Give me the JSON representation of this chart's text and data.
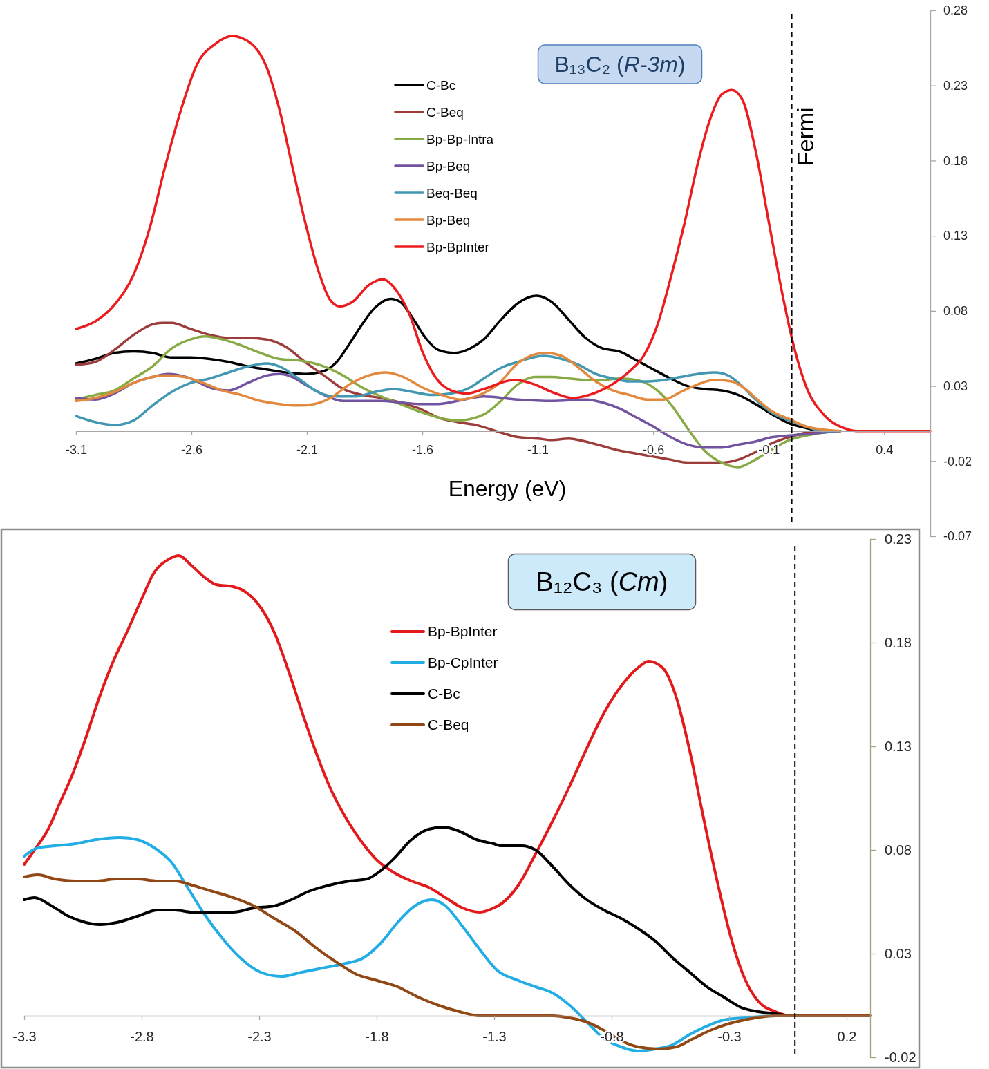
{
  "chart_data": [
    {
      "type": "line",
      "title": "B₁₃C₂ (R-3m)",
      "xlabel": "Energy (eV)",
      "legend": "top",
      "xlim": [
        -3.1,
        0.6
      ],
      "ylim": [
        -0.07,
        0.28
      ],
      "xticks": [
        -3.1,
        -2.6,
        -2.1,
        -1.6,
        -1.1,
        -0.6,
        -0.1,
        0.4
      ],
      "yticks": [
        -0.07,
        -0.02,
        0.03,
        0.08,
        0.13,
        0.18,
        0.23,
        0.28
      ],
      "ref_lines": [
        {
          "axis": "x",
          "value": 0,
          "label": "Fermi",
          "color": "#000000",
          "line_style": "dashed"
        }
      ],
      "series": [
        {
          "name": "C-Bc",
          "color": "#000000",
          "x": [
            -3.1,
            -3.017,
            -2.934,
            -2.851,
            -2.769,
            -2.686,
            -2.604,
            -2.521,
            -2.439,
            -2.356,
            -2.274,
            -2.191,
            -2.108,
            -2.026,
            -1.971,
            -1.916,
            -1.861,
            -1.806,
            -1.737,
            -1.696,
            -1.641,
            -1.586,
            -1.531,
            -1.462,
            -1.393,
            -1.334,
            -1.26,
            -1.187,
            -1.106,
            -1.04,
            -0.966,
            -0.893,
            -0.819,
            -0.746,
            -0.672,
            -0.599,
            -0.525,
            -0.452,
            -0.378,
            -0.304,
            -0.231,
            -0.157,
            -0.084,
            -0.01,
            0.063,
            0.137,
            0.21
          ],
          "values": [
            0.045,
            0.048,
            0.052,
            0.053,
            0.052,
            0.049,
            0.049,
            0.048,
            0.046,
            0.043,
            0.041,
            0.039,
            0.038,
            0.04,
            0.046,
            0.058,
            0.071,
            0.082,
            0.088,
            0.086,
            0.075,
            0.062,
            0.054,
            0.052,
            0.055,
            0.061,
            0.074,
            0.085,
            0.09,
            0.086,
            0.074,
            0.062,
            0.055,
            0.053,
            0.047,
            0.041,
            0.035,
            0.03,
            0.028,
            0.027,
            0.024,
            0.018,
            0.011,
            0.005,
            0.002,
            0,
            0
          ]
        },
        {
          "name": "C-Beq",
          "color": "#9c3d3b",
          "x": [
            -3.1,
            -3.017,
            -2.934,
            -2.851,
            -2.769,
            -2.727,
            -2.686,
            -2.604,
            -2.521,
            -2.439,
            -2.356,
            -2.274,
            -2.191,
            -2.108,
            -2.026,
            -1.943,
            -1.861,
            -1.778,
            -1.696,
            -1.613,
            -1.531,
            -1.448,
            -1.366,
            -1.26,
            -1.187,
            -1.099,
            -1.04,
            -0.966,
            -0.893,
            -0.819,
            -0.746,
            -0.672,
            -0.599,
            -0.525,
            -0.452,
            -0.378,
            -0.304,
            -0.231,
            -0.157,
            -0.084,
            -0.01,
            0.063,
            0.137,
            0.21
          ],
          "values": [
            0.044,
            0.046,
            0.054,
            0.064,
            0.071,
            0.072,
            0.072,
            0.068,
            0.064,
            0.062,
            0.062,
            0.061,
            0.056,
            0.046,
            0.037,
            0.028,
            0.024,
            0.022,
            0.019,
            0.015,
            0.009,
            0.006,
            0.004,
            -0.001,
            -0.004,
            -0.005,
            -0.006,
            -0.005,
            -0.007,
            -0.01,
            -0.013,
            -0.015,
            -0.017,
            -0.019,
            -0.021,
            -0.021,
            -0.021,
            -0.019,
            -0.014,
            -0.008,
            -0.004,
            -0.001,
            0,
            0
          ]
        },
        {
          "name": "Bp-Bp-Intra",
          "color": "#88aa45",
          "x": [
            -3.1,
            -3.017,
            -2.934,
            -2.851,
            -2.769,
            -2.686,
            -2.604,
            -2.542,
            -2.466,
            -2.384,
            -2.301,
            -2.219,
            -2.136,
            -2.067,
            -2.026,
            -1.943,
            -1.861,
            -1.778,
            -1.696,
            -1.613,
            -1.531,
            -1.448,
            -1.334,
            -1.26,
            -1.187,
            -1.113,
            -1.04,
            -0.966,
            -0.893,
            -0.819,
            -0.746,
            -0.672,
            -0.599,
            -0.525,
            -0.452,
            -0.378,
            -0.304,
            -0.231,
            -0.157,
            -0.084,
            -0.01,
            0.063,
            0.137,
            0.21
          ],
          "values": [
            0.021,
            0.024,
            0.027,
            0.035,
            0.043,
            0.055,
            0.061,
            0.063,
            0.061,
            0.057,
            0.052,
            0.048,
            0.047,
            0.045,
            0.043,
            0.037,
            0.029,
            0.023,
            0.018,
            0.013,
            0.009,
            0.007,
            0.011,
            0.02,
            0.031,
            0.036,
            0.036,
            0.035,
            0.034,
            0.034,
            0.035,
            0.034,
            0.029,
            0.018,
            0.002,
            -0.013,
            -0.021,
            -0.024,
            -0.019,
            -0.012,
            -0.006,
            -0.003,
            -0.001,
            0
          ]
        },
        {
          "name": "Bp-Beq",
          "color": "#7153a0",
          "x": [
            -3.1,
            -3.017,
            -2.934,
            -2.851,
            -2.769,
            -2.7,
            -2.604,
            -2.521,
            -2.439,
            -2.356,
            -2.274,
            -2.219,
            -2.163,
            -2.108,
            -2.026,
            -1.943,
            -1.861,
            -1.778,
            -1.696,
            -1.613,
            -1.531,
            -1.448,
            -1.334,
            -1.187,
            -1.04,
            -0.893,
            -0.819,
            -0.746,
            -0.672,
            -0.599,
            -0.525,
            -0.452,
            -0.378,
            -0.304,
            -0.231,
            -0.157,
            -0.084,
            -0.01,
            0.137,
            0.21
          ],
          "values": [
            0.022,
            0.021,
            0.025,
            0.032,
            0.036,
            0.038,
            0.035,
            0.029,
            0.027,
            0.032,
            0.037,
            0.038,
            0.036,
            0.031,
            0.024,
            0.02,
            0.02,
            0.02,
            0.019,
            0.018,
            0.018,
            0.02,
            0.023,
            0.021,
            0.02,
            0.021,
            0.019,
            0.015,
            0.009,
            0.003,
            -0.004,
            -0.009,
            -0.011,
            -0.011,
            -0.009,
            -0.007,
            -0.004,
            -0.003,
            -0.001,
            0
          ]
        },
        {
          "name": "Beq-Beq",
          "color": "#4198b0",
          "x": [
            -3.1,
            -3.017,
            -2.934,
            -2.851,
            -2.769,
            -2.686,
            -2.604,
            -2.521,
            -2.439,
            -2.356,
            -2.274,
            -2.219,
            -2.136,
            -2.053,
            -1.971,
            -1.888,
            -1.806,
            -1.723,
            -1.641,
            -1.558,
            -1.476,
            -1.393,
            -1.334,
            -1.26,
            -1.187,
            -1.077,
            -0.996,
            -0.922,
            -0.849,
            -0.775,
            -0.702,
            -0.628,
            -0.555,
            -0.481,
            -0.408,
            -0.334,
            -0.275,
            -0.216,
            -0.157,
            -0.084,
            -0.01,
            0.063,
            0.137,
            0.21
          ],
          "values": [
            0.01,
            0.006,
            0.004,
            0.007,
            0.017,
            0.026,
            0.032,
            0.035,
            0.039,
            0.043,
            0.045,
            0.043,
            0.035,
            0.026,
            0.023,
            0.023,
            0.026,
            0.028,
            0.026,
            0.024,
            0.025,
            0.029,
            0.035,
            0.042,
            0.046,
            0.05,
            0.048,
            0.044,
            0.038,
            0.035,
            0.033,
            0.033,
            0.034,
            0.036,
            0.038,
            0.039,
            0.037,
            0.03,
            0.021,
            0.012,
            0.007,
            0.003,
            0,
            0
          ]
        },
        {
          "name": "Bp-Beq",
          "color": "#e3893e",
          "x": [
            -3.1,
            -3.017,
            -2.934,
            -2.851,
            -2.769,
            -2.714,
            -2.631,
            -2.549,
            -2.466,
            -2.384,
            -2.301,
            -2.219,
            -2.136,
            -2.067,
            -1.998,
            -1.916,
            -1.833,
            -1.758,
            -1.682,
            -1.6,
            -1.517,
            -1.434,
            -1.352,
            -1.273,
            -1.187,
            -1.069,
            -0.996,
            -0.922,
            -0.849,
            -0.775,
            -0.702,
            -0.628,
            -0.555,
            -0.481,
            -0.408,
            -0.334,
            -0.26,
            -0.201,
            -0.142,
            -0.084,
            -0.01,
            0.063,
            0.137,
            0.21
          ],
          "values": [
            0.02,
            0.022,
            0.026,
            0.032,
            0.036,
            0.037,
            0.036,
            0.032,
            0.027,
            0.024,
            0.02,
            0.018,
            0.017,
            0.018,
            0.022,
            0.031,
            0.037,
            0.039,
            0.036,
            0.029,
            0.024,
            0.021,
            0.024,
            0.031,
            0.045,
            0.052,
            0.05,
            0.042,
            0.033,
            0.027,
            0.024,
            0.021,
            0.021,
            0.026,
            0.031,
            0.034,
            0.033,
            0.028,
            0.02,
            0.013,
            0.008,
            0.003,
            0.001,
            0
          ]
        },
        {
          "name": "Bp-BpInter",
          "color": "#ec1c1e",
          "x": [
            -3.1,
            -3.016,
            -2.934,
            -2.851,
            -2.783,
            -2.714,
            -2.645,
            -2.576,
            -2.494,
            -2.425,
            -2.342,
            -2.274,
            -2.219,
            -2.163,
            -2.109,
            -2.053,
            -1.998,
            -1.957,
            -1.902,
            -1.833,
            -1.771,
            -1.71,
            -1.654,
            -1.6,
            -1.544,
            -1.475,
            -1.407,
            -1.334,
            -1.201,
            -1.113,
            -1.039,
            -0.951,
            -0.878,
            -0.789,
            -0.701,
            -0.642,
            -0.583,
            -0.524,
            -0.465,
            -0.407,
            -0.348,
            -0.304,
            -0.26,
            -0.215,
            -0.157,
            -0.098,
            -0.039,
            0.005,
            0.064,
            0.138,
            0.226,
            0.285,
            0.6
          ],
          "values": [
            0.068,
            0.073,
            0.084,
            0.104,
            0.134,
            0.176,
            0.214,
            0.244,
            0.258,
            0.263,
            0.258,
            0.242,
            0.214,
            0.176,
            0.14,
            0.108,
            0.087,
            0.083,
            0.086,
            0.097,
            0.101,
            0.093,
            0.077,
            0.053,
            0.036,
            0.027,
            0.025,
            0.028,
            0.034,
            0.031,
            0.026,
            0.022,
            0.024,
            0.03,
            0.04,
            0.05,
            0.07,
            0.102,
            0.138,
            0.178,
            0.21,
            0.224,
            0.227,
            0.221,
            0.187,
            0.138,
            0.09,
            0.059,
            0.029,
            0.011,
            0.002,
            0,
            0
          ]
        }
      ]
    },
    {
      "type": "line",
      "title": "B₁₂C₃ (Cm)",
      "legend": "top",
      "xlim": [
        -3.3,
        0.3
      ],
      "ylim": [
        -0.02,
        0.23
      ],
      "xticks": [
        -3.3,
        -2.8,
        -2.3,
        -1.8,
        -1.3,
        -0.8,
        -0.3,
        0.2
      ],
      "yticks": [
        -0.02,
        0.03,
        0.08,
        0.13,
        0.18,
        0.23
      ],
      "ref_lines": [
        {
          "axis": "x",
          "value": -0.02,
          "color": "#000000",
          "line_style": "dashed"
        }
      ],
      "series": [
        {
          "name": "Bp-BpInter",
          "color": "#e31a1c",
          "x": [
            -3.3,
            -3.256,
            -3.198,
            -3.147,
            -3.096,
            -3.038,
            -2.979,
            -2.921,
            -2.863,
            -2.804,
            -2.746,
            -2.688,
            -2.644,
            -2.586,
            -2.527,
            -2.483,
            -2.411,
            -2.352,
            -2.294,
            -2.236,
            -2.177,
            -2.119,
            -2.061,
            -2.002,
            -1.944,
            -1.871,
            -1.798,
            -1.725,
            -1.652,
            -1.579,
            -1.507,
            -1.434,
            -1.361,
            -1.302,
            -1.27,
            -1.197,
            -1.124,
            -1.051,
            -0.978,
            -0.906,
            -0.833,
            -0.76,
            -0.687,
            -0.643,
            -0.584,
            -0.526,
            -0.468,
            -0.41,
            -0.351,
            -0.293,
            -0.234,
            -0.176,
            -0.103,
            -0.03,
            0.1
          ],
          "values": [
            0.073,
            0.08,
            0.09,
            0.103,
            0.116,
            0.134,
            0.154,
            0.171,
            0.185,
            0.2,
            0.214,
            0.22,
            0.222,
            0.217,
            0.211,
            0.208,
            0.207,
            0.204,
            0.197,
            0.185,
            0.167,
            0.147,
            0.128,
            0.111,
            0.098,
            0.085,
            0.075,
            0.069,
            0.065,
            0.062,
            0.057,
            0.052,
            0.05,
            0.052,
            0.054,
            0.063,
            0.078,
            0.094,
            0.111,
            0.129,
            0.146,
            0.159,
            0.168,
            0.171,
            0.168,
            0.154,
            0.128,
            0.096,
            0.065,
            0.038,
            0.018,
            0.007,
            0.002,
            0,
            0
          ]
        },
        {
          "name": "Bp-CpInter",
          "color": "#22ade4",
          "x": [
            -3.3,
            -3.242,
            -3.169,
            -3.081,
            -2.994,
            -2.892,
            -2.819,
            -2.746,
            -2.673,
            -2.6,
            -2.527,
            -2.454,
            -2.381,
            -2.294,
            -2.206,
            -2.119,
            -2.031,
            -1.944,
            -1.856,
            -1.783,
            -1.711,
            -1.638,
            -1.565,
            -1.507,
            -1.434,
            -1.361,
            -1.288,
            -1.197,
            -1.124,
            -1.051,
            -0.978,
            -0.906,
            -0.833,
            -0.76,
            -0.687,
            -0.614,
            -0.541,
            -0.468,
            -0.395,
            -0.322,
            -0.234,
            -0.103,
            0.1
          ],
          "values": [
            0.077,
            0.081,
            0.082,
            0.083,
            0.085,
            0.086,
            0.085,
            0.081,
            0.074,
            0.061,
            0.048,
            0.037,
            0.028,
            0.021,
            0.019,
            0.021,
            0.023,
            0.025,
            0.028,
            0.035,
            0.045,
            0.053,
            0.056,
            0.053,
            0.043,
            0.032,
            0.022,
            0.017,
            0.014,
            0.011,
            0.005,
            -0.003,
            -0.011,
            -0.015,
            -0.017,
            -0.016,
            -0.014,
            -0.009,
            -0.005,
            -0.002,
            -0.001,
            0,
            0
          ]
        },
        {
          "name": "C-Bc",
          "color": "#000000",
          "x": [
            -3.3,
            -3.256,
            -3.183,
            -3.11,
            -3.038,
            -2.979,
            -2.906,
            -2.819,
            -2.731,
            -2.658,
            -2.586,
            -2.498,
            -2.411,
            -2.323,
            -2.236,
            -2.163,
            -2.09,
            -2.002,
            -1.915,
            -1.842,
            -1.783,
            -1.725,
            -1.652,
            -1.579,
            -1.514,
            -1.448,
            -1.375,
            -1.302,
            -1.27,
            -1.182,
            -1.124,
            -1.051,
            -0.978,
            -0.906,
            -0.833,
            -0.76,
            -0.687,
            -0.614,
            -0.541,
            -0.468,
            -0.395,
            -0.322,
            -0.249,
            -0.176,
            -0.103,
            -0.03,
            0.1
          ],
          "values": [
            0.056,
            0.057,
            0.053,
            0.048,
            0.045,
            0.044,
            0.045,
            0.048,
            0.051,
            0.051,
            0.05,
            0.05,
            0.05,
            0.052,
            0.053,
            0.056,
            0.06,
            0.063,
            0.065,
            0.066,
            0.07,
            0.076,
            0.085,
            0.09,
            0.091,
            0.089,
            0.085,
            0.083,
            0.082,
            0.082,
            0.08,
            0.072,
            0.063,
            0.056,
            0.051,
            0.047,
            0.042,
            0.036,
            0.028,
            0.021,
            0.014,
            0.009,
            0.004,
            0.002,
            0.001,
            0,
            0
          ]
        },
        {
          "name": "C-Beq",
          "color": "#924814",
          "x": [
            -3.3,
            -3.242,
            -3.169,
            -3.081,
            -2.994,
            -2.906,
            -2.819,
            -2.731,
            -2.658,
            -2.586,
            -2.498,
            -2.411,
            -2.323,
            -2.236,
            -2.148,
            -2.061,
            -1.973,
            -1.886,
            -1.798,
            -1.711,
            -1.623,
            -1.536,
            -1.448,
            -1.361,
            -1.288,
            -1.197,
            -1.124,
            -1.051,
            -0.978,
            -0.906,
            -0.833,
            -0.76,
            -0.687,
            -0.599,
            -0.526,
            -0.453,
            -0.38,
            -0.307,
            -0.234,
            -0.103,
            0.3
          ],
          "values": [
            0.067,
            0.068,
            0.066,
            0.065,
            0.065,
            0.066,
            0.066,
            0.065,
            0.065,
            0.063,
            0.06,
            0.057,
            0.053,
            0.047,
            0.041,
            0.033,
            0.026,
            0.02,
            0.017,
            0.014,
            0.009,
            0.005,
            0.002,
            0,
            0,
            0,
            0,
            0,
            -0.001,
            -0.003,
            -0.007,
            -0.012,
            -0.015,
            -0.016,
            -0.015,
            -0.011,
            -0.007,
            -0.004,
            -0.002,
            0,
            0
          ]
        }
      ]
    }
  ]
}
